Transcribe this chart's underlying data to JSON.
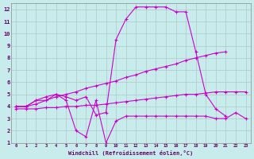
{
  "xlabel": "Windchill (Refroidissement éolien,°C)",
  "bg_color": "#c8ecec",
  "grid_color": "#b0c8c8",
  "line_color": "#cc00cc",
  "xlim": [
    -0.5,
    23.5
  ],
  "ylim": [
    1,
    12.5
  ],
  "xticks": [
    0,
    1,
    2,
    3,
    4,
    5,
    6,
    7,
    8,
    9,
    10,
    11,
    12,
    13,
    14,
    15,
    16,
    17,
    18,
    19,
    20,
    21,
    22,
    23
  ],
  "yticks": [
    1,
    2,
    3,
    4,
    5,
    6,
    7,
    8,
    9,
    10,
    11,
    12
  ],
  "line1_x": [
    0,
    1,
    2,
    3,
    4,
    5,
    6,
    7,
    8,
    9,
    10,
    11,
    12,
    13,
    14,
    15,
    16,
    17,
    18,
    19,
    20,
    21
  ],
  "line1_y": [
    4.0,
    4.0,
    4.5,
    4.5,
    5.0,
    4.8,
    4.5,
    4.8,
    3.3,
    3.5,
    9.5,
    11.2,
    12.2,
    12.2,
    12.2,
    12.2,
    11.8,
    11.8,
    8.5,
    5.0,
    3.8,
    3.2
  ],
  "line2_x": [
    0,
    1,
    2,
    3,
    4,
    5,
    6,
    7,
    8,
    9,
    10,
    11,
    12,
    13,
    14,
    15,
    16,
    17,
    18,
    19,
    20,
    21,
    22,
    23
  ],
  "line2_y": [
    4.0,
    4.0,
    4.5,
    4.8,
    5.0,
    4.5,
    2.0,
    1.5,
    4.5,
    1.0,
    2.8,
    3.2,
    3.2,
    3.2,
    3.2,
    3.2,
    3.2,
    3.2,
    3.2,
    3.2,
    3.0,
    3.0,
    3.5,
    3.0
  ],
  "line3_x": [
    0,
    1,
    2,
    3,
    4,
    5,
    6,
    7,
    8,
    9,
    10,
    11,
    12,
    13,
    14,
    15,
    16,
    17,
    18,
    19,
    20,
    21
  ],
  "line3_y": [
    4.0,
    4.0,
    4.2,
    4.5,
    4.8,
    5.0,
    5.2,
    5.5,
    5.7,
    5.9,
    6.1,
    6.4,
    6.6,
    6.9,
    7.1,
    7.3,
    7.5,
    7.8,
    8.0,
    8.2,
    8.4,
    8.5
  ],
  "line4_x": [
    0,
    1,
    2,
    3,
    4,
    5,
    6,
    7,
    8,
    9,
    10,
    11,
    12,
    13,
    14,
    15,
    16,
    17,
    18,
    19,
    20,
    21,
    22,
    23
  ],
  "line4_y": [
    3.8,
    3.8,
    3.8,
    3.9,
    3.9,
    4.0,
    4.0,
    4.1,
    4.1,
    4.2,
    4.3,
    4.4,
    4.5,
    4.6,
    4.7,
    4.8,
    4.9,
    5.0,
    5.0,
    5.1,
    5.2,
    5.2,
    5.2,
    5.2
  ]
}
